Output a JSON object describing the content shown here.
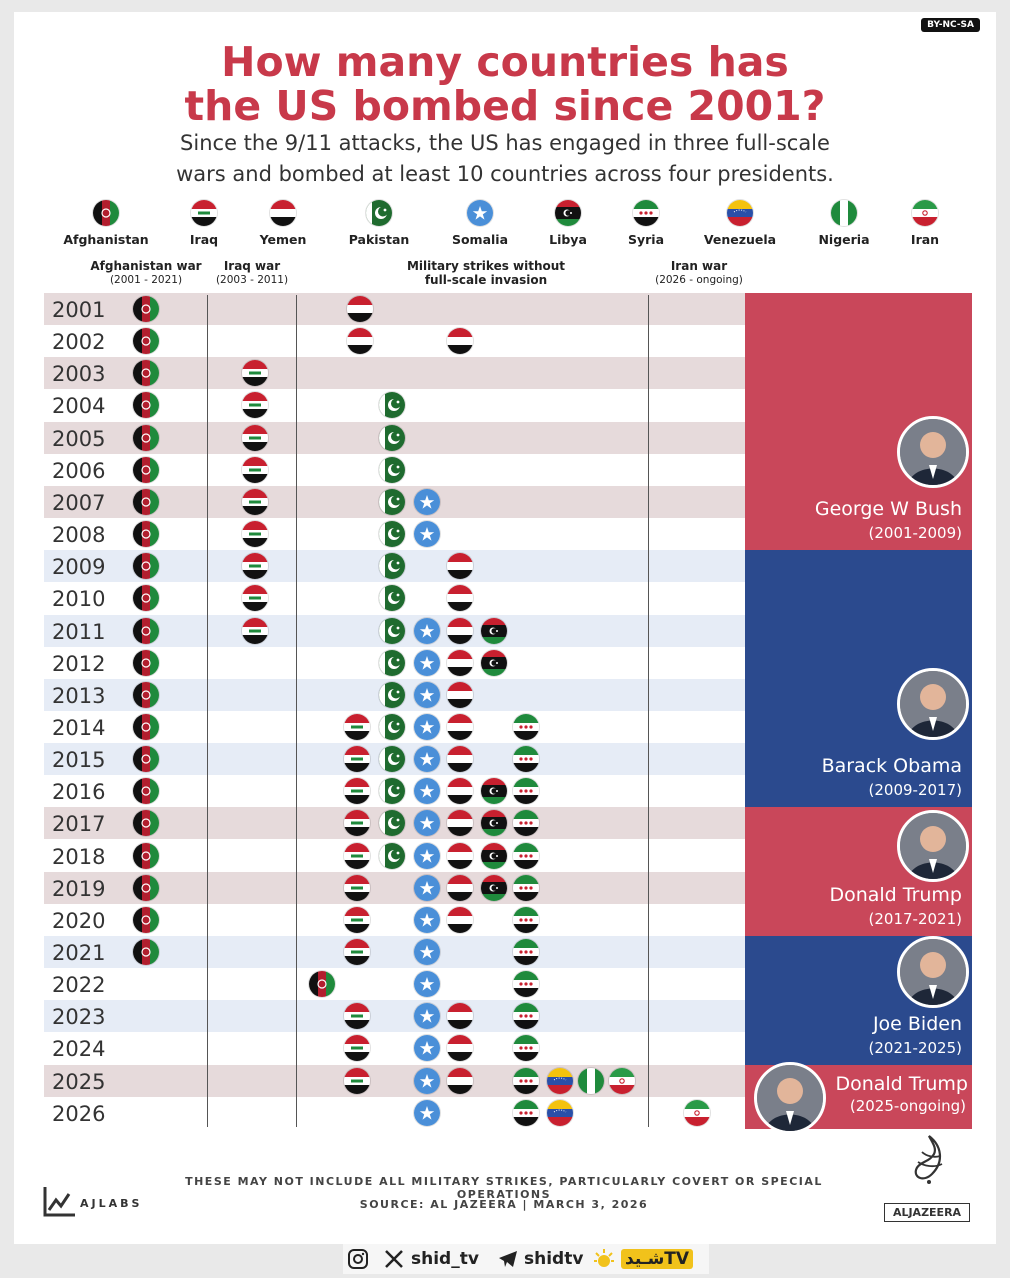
{
  "license": "BY-NC-SA",
  "title_line1": "How many countries has",
  "title_line2": "the US bombed since 2001?",
  "subtitle_line1": "Since the 9/11 attacks, the US has engaged in three full-scale",
  "subtitle_line2": "wars and bombed at least 10 countries across four presidents.",
  "countries": [
    {
      "key": "afghanistan",
      "name": "Afghanistan",
      "flag": "afghanistan-flag-icon"
    },
    {
      "key": "iraq",
      "name": "Iraq",
      "flag": "iraq-flag-icon"
    },
    {
      "key": "yemen",
      "name": "Yemen",
      "flag": "yemen-flag-icon"
    },
    {
      "key": "pakistan",
      "name": "Pakistan",
      "flag": "pakistan-flag-icon"
    },
    {
      "key": "somalia",
      "name": "Somalia",
      "flag": "somalia-flag-icon"
    },
    {
      "key": "libya",
      "name": "Libya",
      "flag": "libya-flag-icon"
    },
    {
      "key": "syria",
      "name": "Syria",
      "flag": "syria-flag-icon"
    },
    {
      "key": "venezuela",
      "name": "Venezuela",
      "flag": "venezuela-flag-icon"
    },
    {
      "key": "nigeria",
      "name": "Nigeria",
      "flag": "nigeria-flag-icon"
    },
    {
      "key": "iran",
      "name": "Iran",
      "flag": "iran-flag-icon"
    }
  ],
  "groups": [
    {
      "label": "Afghanistan war",
      "sub": "(2001 - 2021)"
    },
    {
      "label": "Iraq war",
      "sub": "(2003 - 2011)"
    },
    {
      "label": "Military strikes without",
      "sub": "full-scale invasion"
    },
    {
      "label": "Iran war",
      "sub": "(2026 - ongoing)"
    }
  ],
  "rows": [
    {
      "year": "2001",
      "bombed": [
        "afghanistan",
        "yemen"
      ]
    },
    {
      "year": "2002",
      "bombed": [
        "afghanistan",
        "yemen",
        "yemen"
      ]
    },
    {
      "year": "2003",
      "bombed": [
        "afghanistan",
        "iraq"
      ]
    },
    {
      "year": "2004",
      "bombed": [
        "afghanistan",
        "iraq",
        "pakistan"
      ]
    },
    {
      "year": "2005",
      "bombed": [
        "afghanistan",
        "iraq",
        "pakistan"
      ]
    },
    {
      "year": "2006",
      "bombed": [
        "afghanistan",
        "iraq",
        "pakistan"
      ]
    },
    {
      "year": "2007",
      "bombed": [
        "afghanistan",
        "iraq",
        "pakistan",
        "somalia"
      ]
    },
    {
      "year": "2008",
      "bombed": [
        "afghanistan",
        "iraq",
        "pakistan",
        "somalia"
      ]
    },
    {
      "year": "2009",
      "bombed": [
        "afghanistan",
        "iraq",
        "pakistan",
        "yemen"
      ]
    },
    {
      "year": "2010",
      "bombed": [
        "afghanistan",
        "iraq",
        "pakistan",
        "yemen"
      ]
    },
    {
      "year": "2011",
      "bombed": [
        "afghanistan",
        "iraq",
        "pakistan",
        "somalia",
        "yemen",
        "libya"
      ]
    },
    {
      "year": "2012",
      "bombed": [
        "afghanistan",
        "pakistan",
        "somalia",
        "yemen",
        "libya"
      ]
    },
    {
      "year": "2013",
      "bombed": [
        "afghanistan",
        "pakistan",
        "somalia",
        "yemen"
      ]
    },
    {
      "year": "2014",
      "bombed": [
        "afghanistan",
        "iraq",
        "pakistan",
        "somalia",
        "yemen",
        "syria"
      ]
    },
    {
      "year": "2015",
      "bombed": [
        "afghanistan",
        "iraq",
        "pakistan",
        "somalia",
        "yemen",
        "syria"
      ]
    },
    {
      "year": "2016",
      "bombed": [
        "afghanistan",
        "iraq",
        "pakistan",
        "somalia",
        "yemen",
        "libya",
        "syria"
      ]
    },
    {
      "year": "2017",
      "bombed": [
        "afghanistan",
        "iraq",
        "pakistan",
        "somalia",
        "yemen",
        "libya",
        "syria"
      ]
    },
    {
      "year": "2018",
      "bombed": [
        "afghanistan",
        "iraq",
        "pakistan",
        "somalia",
        "yemen",
        "libya",
        "syria"
      ]
    },
    {
      "year": "2019",
      "bombed": [
        "afghanistan",
        "iraq",
        "somalia",
        "yemen",
        "libya",
        "syria"
      ]
    },
    {
      "year": "2020",
      "bombed": [
        "afghanistan",
        "iraq",
        "somalia",
        "yemen",
        "syria"
      ]
    },
    {
      "year": "2021",
      "bombed": [
        "afghanistan",
        "iraq",
        "somalia",
        "syria"
      ]
    },
    {
      "year": "2022",
      "bombed": [
        "afghanistan",
        "somalia",
        "syria"
      ]
    },
    {
      "year": "2023",
      "bombed": [
        "iraq",
        "somalia",
        "yemen",
        "syria"
      ]
    },
    {
      "year": "2024",
      "bombed": [
        "iraq",
        "somalia",
        "yemen",
        "syria"
      ]
    },
    {
      "year": "2025",
      "bombed": [
        "iraq",
        "somalia",
        "yemen",
        "syria",
        "venezuela",
        "nigeria",
        "iran"
      ]
    },
    {
      "year": "2026",
      "bombed": [
        "somalia",
        "syria",
        "venezuela",
        "iran"
      ]
    }
  ],
  "presidents": [
    {
      "name": "George W Bush",
      "term": "(2001-2009)",
      "color": "#c9475a"
    },
    {
      "name": "Barack Obama",
      "term": "(2009-2017)",
      "color": "#2b4a8e"
    },
    {
      "name": "Donald Trump",
      "term": "(2017-2021)",
      "color": "#c9475a"
    },
    {
      "name": "Joe Biden",
      "term": "(2021-2025)",
      "color": "#2b4a8e"
    },
    {
      "name": "Donald Trump",
      "term": "(2025-ongoing)",
      "color": "#c9475a"
    }
  ],
  "footnote": "THESE MAY NOT INCLUDE ALL MILITARY STRIKES, PARTICULARLY COVERT OR SPECIAL OPERATIONS",
  "source": "SOURCE:  AL JAZEERA  |  MARCH 3, 2026",
  "brand_left": "AJLABS",
  "brand_right": "ALJAZEERA",
  "watermark": {
    "handle_x": "shid_tv",
    "handle_tg": "shidtv",
    "tv_logo": "شـیدTV"
  },
  "colors": {
    "title": "#c8394a",
    "stripe": "#e6dadb",
    "stripe_blue": "#e6ecf6",
    "republican": "#c9475a",
    "democrat": "#2b4a8e"
  }
}
